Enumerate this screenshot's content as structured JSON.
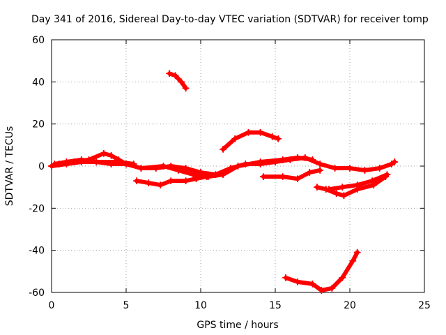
{
  "chart_data": {
    "type": "line",
    "title": "Day 341 of 2016, Sidereal Day-to-day VTEC variation (SDTVAR) for receiver tomp",
    "xlabel": "GPS time / hours",
    "ylabel": "SDTVAR / TECUs",
    "xlim": [
      0,
      25
    ],
    "ylim": [
      -60,
      60
    ],
    "xticks": [
      0,
      5,
      10,
      15,
      20,
      25
    ],
    "yticks": [
      -60,
      -40,
      -20,
      0,
      20,
      40,
      60
    ],
    "grid": true,
    "color": "#ff0000",
    "series": [
      {
        "points": [
          [
            0,
            0
          ],
          [
            0.5,
            1
          ],
          [
            1.5,
            2
          ],
          [
            2.5,
            3
          ],
          [
            3.5,
            6
          ],
          [
            4,
            5
          ],
          [
            4.5,
            3
          ],
          [
            5,
            1
          ],
          [
            6,
            -1
          ],
          [
            7,
            -1
          ],
          [
            8,
            0
          ],
          [
            9,
            -1
          ],
          [
            10,
            -3
          ],
          [
            11,
            -4
          ],
          [
            12,
            -1
          ],
          [
            13,
            1
          ],
          [
            14,
            1
          ],
          [
            15,
            2
          ],
          [
            16,
            3
          ],
          [
            17,
            4
          ],
          [
            18,
            1
          ],
          [
            19,
            -1
          ],
          [
            20,
            -1
          ],
          [
            21,
            -2
          ],
          [
            22,
            -1
          ],
          [
            22.8,
            1
          ],
          [
            23,
            2
          ]
        ]
      },
      {
        "points": [
          [
            0.2,
            1
          ],
          [
            1,
            2
          ],
          [
            2,
            3
          ],
          [
            3,
            2
          ],
          [
            4,
            1
          ],
          [
            5,
            1
          ],
          [
            6,
            -1
          ],
          [
            7.5,
            0
          ],
          [
            8.5,
            -2
          ],
          [
            9.5,
            -4
          ],
          [
            10.5,
            -5
          ],
          [
            11.5,
            -4
          ],
          [
            12.5,
            0
          ],
          [
            14,
            2
          ],
          [
            15.5,
            3
          ],
          [
            16.5,
            4
          ],
          [
            17.5,
            3
          ]
        ]
      },
      {
        "points": [
          [
            0,
            0
          ],
          [
            1,
            1
          ],
          [
            2,
            2
          ],
          [
            3,
            2
          ],
          [
            4.5,
            2
          ],
          [
            5.5,
            1
          ]
        ]
      },
      {
        "points": [
          [
            5.7,
            -7
          ],
          [
            6.5,
            -8
          ],
          [
            7.3,
            -9
          ],
          [
            8,
            -7
          ],
          [
            9,
            -7
          ],
          [
            9.7,
            -6
          ],
          [
            10.4,
            -5
          ]
        ]
      },
      {
        "points": [
          [
            7.9,
            44
          ],
          [
            8.3,
            43
          ],
          [
            8.7,
            40
          ],
          [
            9,
            37
          ]
        ]
      },
      {
        "points": [
          [
            11.5,
            8
          ],
          [
            12.3,
            13
          ],
          [
            13.2,
            16
          ],
          [
            14,
            16
          ],
          [
            14.8,
            14
          ],
          [
            15.2,
            13
          ]
        ]
      },
      {
        "points": [
          [
            14.2,
            -5
          ],
          [
            15.5,
            -5
          ],
          [
            16.5,
            -6
          ],
          [
            17.3,
            -3
          ],
          [
            18,
            -2
          ]
        ]
      },
      {
        "points": [
          [
            15.7,
            -53
          ],
          [
            16.5,
            -55
          ],
          [
            17.5,
            -56
          ],
          [
            18.1,
            -59
          ],
          [
            18.8,
            -58
          ],
          [
            19.5,
            -53
          ],
          [
            20.2,
            -45
          ],
          [
            20.5,
            -41
          ]
        ]
      },
      {
        "points": [
          [
            17.8,
            -10
          ],
          [
            18.4,
            -11
          ],
          [
            19.1,
            -13
          ],
          [
            19.6,
            -14
          ],
          [
            20.5,
            -11
          ],
          [
            21.6,
            -9
          ],
          [
            22.4,
            -5
          ]
        ]
      },
      {
        "points": [
          [
            18.6,
            -11
          ],
          [
            19.5,
            -10
          ],
          [
            20.5,
            -9
          ],
          [
            21.5,
            -7
          ],
          [
            22.5,
            -4
          ]
        ]
      }
    ]
  }
}
